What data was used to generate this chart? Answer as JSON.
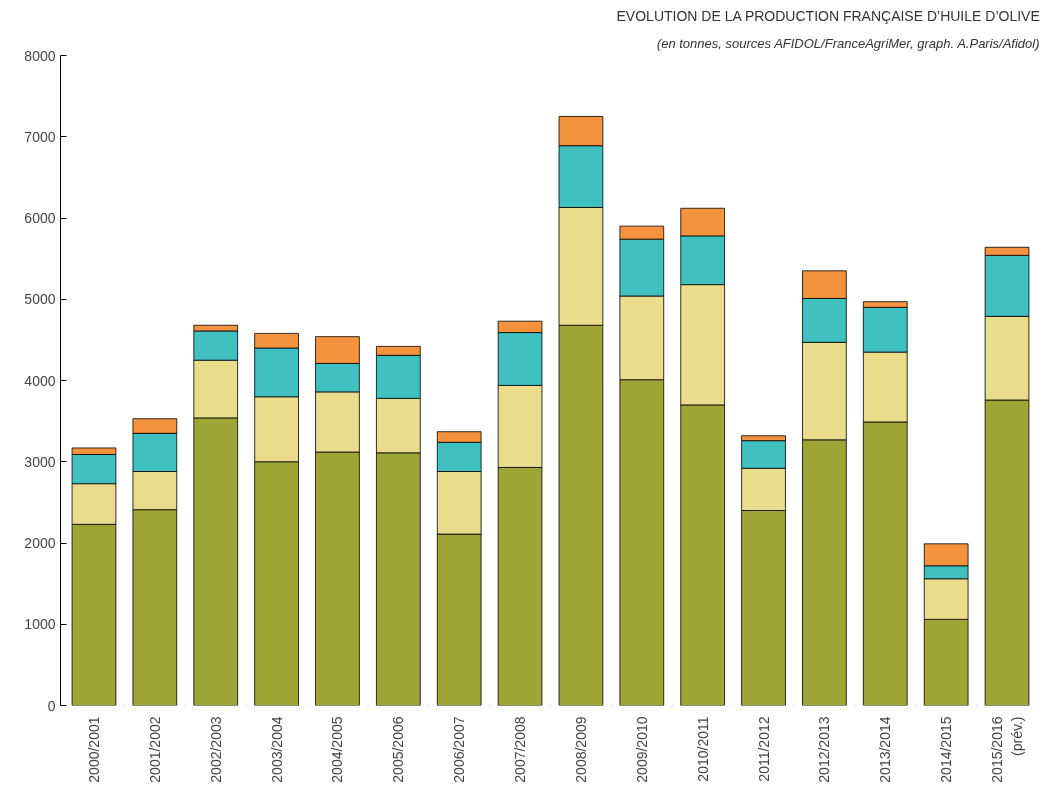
{
  "chart_data": {
    "type": "bar",
    "stacked": true,
    "title": "EVOLUTION DE LA PRODUCTION FRANÇAISE D’HUILE D’OLIVE",
    "subtitle": "(en tonnes, sources AFIDOL/FranceAgriMer, graph. A.Paris/Afidol)",
    "categories": [
      "2000/2001",
      "2001/2002",
      "2002/2003",
      "2003/2004",
      "2004/2005",
      "2005/2006",
      "2006/2007",
      "2007/2008",
      "2008/2009",
      "2009/2010",
      "2010/2011",
      "2011/2012",
      "2012/2013",
      "2013/2014",
      "2014/2015",
      "2015/2016\n(prév.)"
    ],
    "series": [
      {
        "color": "#9ea535",
        "values": [
          2230,
          2410,
          3540,
          3000,
          3120,
          3110,
          2110,
          2930,
          4680,
          4010,
          3700,
          2400,
          3270,
          3490,
          1060,
          3760
        ]
      },
      {
        "color": "#e9dc8a",
        "values": [
          500,
          470,
          710,
          800,
          740,
          670,
          770,
          1010,
          1450,
          1030,
          1480,
          520,
          1200,
          860,
          500,
          1030
        ]
      },
      {
        "color": "#40c0c0",
        "values": [
          360,
          470,
          360,
          600,
          350,
          530,
          360,
          650,
          760,
          700,
          600,
          340,
          540,
          550,
          160,
          750
        ]
      },
      {
        "color": "#f5923e",
        "values": [
          80,
          180,
          70,
          180,
          330,
          110,
          130,
          140,
          360,
          160,
          340,
          60,
          340,
          70,
          270,
          100
        ]
      }
    ],
    "ylim": [
      0,
      8000
    ],
    "yticks": [
      0,
      1000,
      2000,
      3000,
      4000,
      5000,
      6000,
      7000,
      8000
    ],
    "grid": false
  }
}
